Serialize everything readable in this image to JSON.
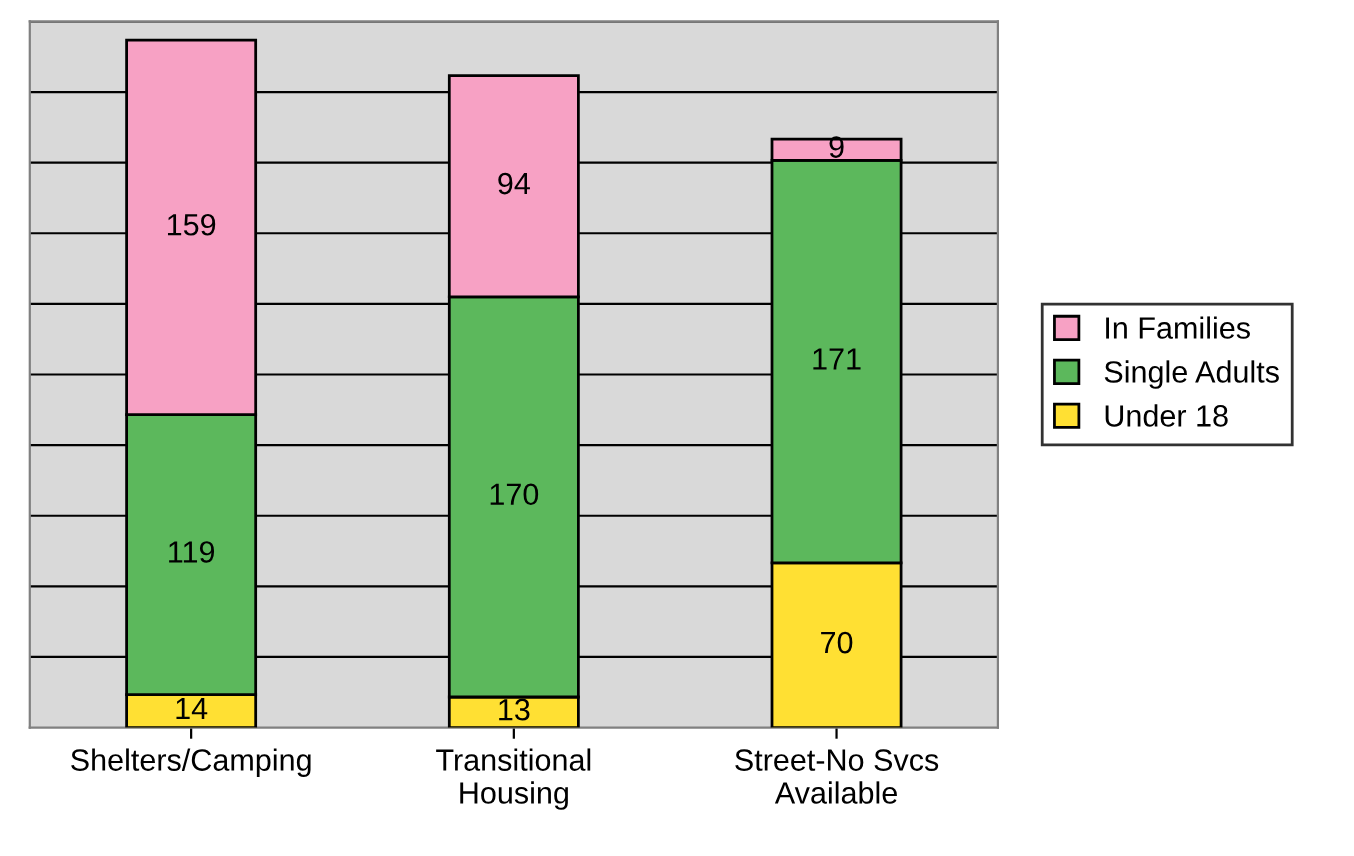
{
  "chart_data": {
    "type": "bar",
    "stacked": true,
    "categories": [
      "Shelters/Camping",
      "Transitional\nHousing",
      "Street-No Svcs\nAvailable"
    ],
    "series": [
      {
        "name": "Under 18",
        "color": "#ffe033",
        "values": [
          14,
          13,
          70
        ]
      },
      {
        "name": "Single Adults",
        "color": "#5cb85c",
        "values": [
          119,
          170,
          171
        ]
      },
      {
        "name": "In Families",
        "color": "#f7a1c4",
        "values": [
          159,
          94,
          9
        ]
      }
    ],
    "ylim": [
      0,
      300
    ],
    "yticks": [
      {
        "value": 30,
        "label": null
      },
      {
        "value": 60,
        "label": null
      },
      {
        "value": 90,
        "label": null
      },
      {
        "value": 120,
        "label": null
      },
      {
        "value": 150,
        "label": null
      },
      {
        "value": 180,
        "label": null
      },
      {
        "value": 210,
        "label": null
      },
      {
        "value": 240,
        "label": null
      },
      {
        "value": 270,
        "label": null
      },
      {
        "value": 300,
        "label": null
      }
    ],
    "grid": "y",
    "legend": "right",
    "data_labels": true
  }
}
